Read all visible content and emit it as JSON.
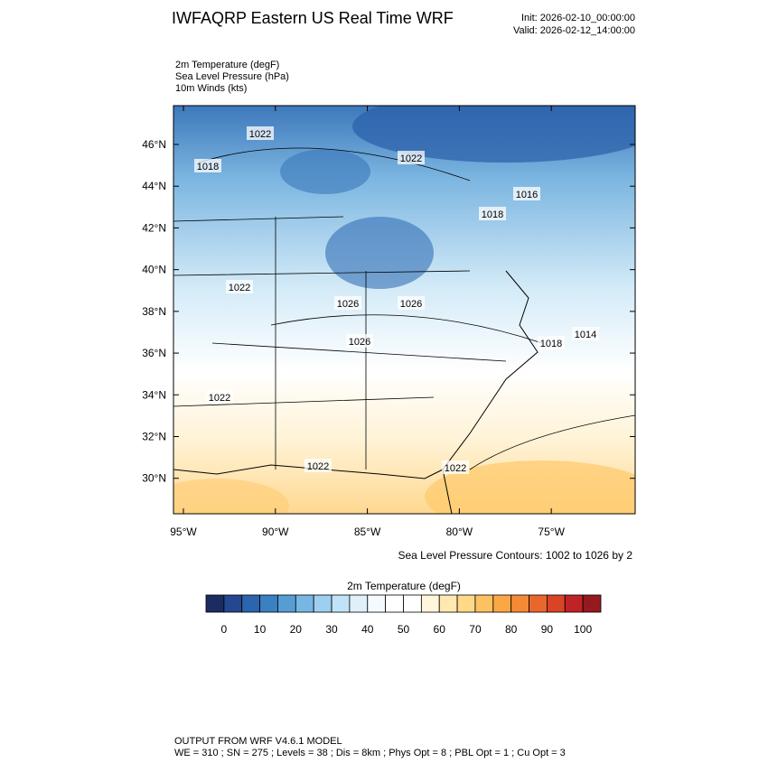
{
  "header": {
    "title": "IWFAQRP Eastern US Real Time WRF",
    "init": "Init: 2026-02-10_00:00:00",
    "valid": "Valid: 2026-02-12_14:00:00"
  },
  "fields": [
    "2m Temperature   (degF)",
    "Sea Level Pressure   (hPa)",
    "10m Winds   (kts)"
  ],
  "map": {
    "latlim": [
      28.3,
      47.86
    ],
    "lonlim": [
      -95.54,
      -70.44
    ],
    "lat_ticks": [
      {
        "value": 46,
        "label": "46°N"
      },
      {
        "value": 44,
        "label": "44°N"
      },
      {
        "value": 42,
        "label": "42°N"
      },
      {
        "value": 40,
        "label": "40°N"
      },
      {
        "value": 38,
        "label": "38°N"
      },
      {
        "value": 36,
        "label": "36°N"
      },
      {
        "value": 34,
        "label": "34°N"
      },
      {
        "value": 32,
        "label": "32°N"
      },
      {
        "value": 30,
        "label": "30°N"
      }
    ],
    "lon_ticks": [
      {
        "value": -95,
        "label": "95°W"
      },
      {
        "value": -90,
        "label": "90°W"
      },
      {
        "value": -85,
        "label": "85°W"
      },
      {
        "value": -80,
        "label": "80°W"
      },
      {
        "value": -75,
        "label": "75°W"
      }
    ],
    "contour_labels": [
      "1022",
      "1018",
      "1022",
      "1016",
      "1018",
      "1022",
      "1026",
      "1026",
      "1026",
      "1018",
      "1014",
      "1022",
      "1022",
      "1022"
    ]
  },
  "contour_note": "Sea Level Pressure Contours: 1002 to 1026 by 2",
  "colorbar": {
    "title": "2m Temperature  (degF)",
    "lim": [
      -5,
      105
    ],
    "ticks": [
      0,
      10,
      20,
      30,
      40,
      50,
      60,
      70,
      80,
      90,
      100
    ],
    "colors": [
      "#1a2c61",
      "#24478f",
      "#2c64ad",
      "#3b80c2",
      "#569dd4",
      "#78b7e3",
      "#9dcfef",
      "#c0e3f7",
      "#dff0fa",
      "#f4fafd",
      "#ffffff",
      "#ffffff",
      "#fff6dc",
      "#ffe9b0",
      "#ffd888",
      "#fcc160",
      "#f9a845",
      "#f38a35",
      "#e8672c",
      "#d94427",
      "#bf2326",
      "#951a1f"
    ]
  },
  "footer": {
    "line1": "OUTPUT FROM WRF V4.6.1 MODEL",
    "line2": "WE = 310 ; SN = 275 ; Levels = 38 ; Dis = 8km ; Phys Opt = 8 ; PBL Opt = 1 ; Cu Opt = 3"
  }
}
